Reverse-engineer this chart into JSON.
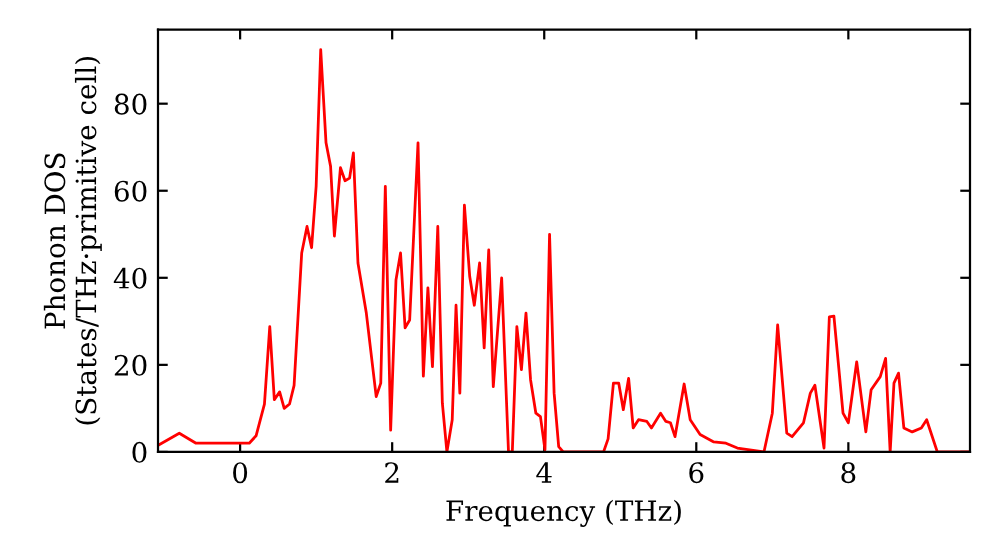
{
  "chart_data": {
    "type": "line",
    "xlabel": "Frequency (THz)",
    "ylabel": "Phonon DOS\n(States/THz·primitive cell)",
    "xlim": [
      -1.08,
      9.6
    ],
    "ylim": [
      0,
      97
    ],
    "xticks": [
      0,
      2,
      4,
      6,
      8
    ],
    "yticks": [
      0,
      20,
      40,
      60,
      80
    ],
    "grid": false,
    "marker": "none",
    "line_style": "solid",
    "series": [
      {
        "color": "#ff0000",
        "x": [
          -1.08,
          -0.8,
          -0.58,
          0.12,
          0.21,
          0.32,
          0.39,
          0.45,
          0.52,
          0.58,
          0.65,
          0.71,
          0.81,
          0.88,
          0.94,
          1.0,
          1.06,
          1.13,
          1.19,
          1.24,
          1.32,
          1.38,
          1.44,
          1.49,
          1.55,
          1.66,
          1.79,
          1.85,
          1.91,
          1.98,
          2.05,
          2.11,
          2.17,
          2.23,
          2.34,
          2.41,
          2.47,
          2.53,
          2.6,
          2.66,
          2.72,
          2.79,
          2.84,
          2.89,
          2.95,
          3.02,
          3.08,
          3.15,
          3.21,
          3.27,
          3.33,
          3.44,
          3.53,
          3.58,
          3.64,
          3.7,
          3.76,
          3.82,
          3.89,
          3.95,
          4.01,
          4.07,
          4.13,
          4.19,
          4.25,
          4.78,
          4.84,
          4.91,
          4.98,
          5.04,
          5.11,
          5.17,
          5.24,
          5.35,
          5.41,
          5.53,
          5.6,
          5.66,
          5.72,
          5.84,
          5.92,
          6.05,
          6.23,
          6.39,
          6.54,
          6.89,
          7.0,
          7.07,
          7.19,
          7.26,
          7.41,
          7.5,
          7.56,
          7.68,
          7.75,
          7.81,
          7.93,
          8.0,
          8.11,
          8.23,
          8.3,
          8.42,
          8.49,
          8.55,
          8.6,
          8.66,
          8.73,
          8.84,
          8.96,
          9.03,
          9.17,
          9.6
        ],
        "values": [
          1.5,
          4.3,
          2,
          2,
          3.7,
          11,
          28.8,
          12,
          13.8,
          10,
          11,
          15.3,
          45.7,
          51.8,
          46.9,
          61,
          92.4,
          71,
          65.6,
          49.6,
          65.3,
          62.3,
          62.9,
          68.7,
          43.4,
          31.9,
          12.7,
          15.8,
          61,
          5,
          39.5,
          45.7,
          28.5,
          30.3,
          71,
          17.4,
          37.7,
          19.6,
          51.8,
          11.2,
          0,
          7.4,
          33.7,
          13.5,
          56.7,
          40.3,
          33.7,
          43.4,
          23.9,
          46.4,
          15,
          40,
          0,
          0,
          28.8,
          18.9,
          31.9,
          16.6,
          8.9,
          8.1,
          0.5,
          50,
          13.5,
          1.2,
          0,
          0,
          3,
          15.8,
          15.8,
          9.7,
          16.9,
          5.5,
          7.4,
          7,
          5.5,
          8.9,
          7,
          6.7,
          3.5,
          15.6,
          7.4,
          4,
          2.3,
          2,
          0.9,
          0,
          8.9,
          29.2,
          4.3,
          3.5,
          6.7,
          13.5,
          15.3,
          0.9,
          31,
          31.2,
          8.9,
          6.7,
          20.7,
          4.6,
          14.3,
          17.3,
          21.5,
          0,
          15.8,
          18.1,
          5.5,
          4.6,
          5.5,
          7.4,
          0,
          0
        ]
      }
    ]
  }
}
